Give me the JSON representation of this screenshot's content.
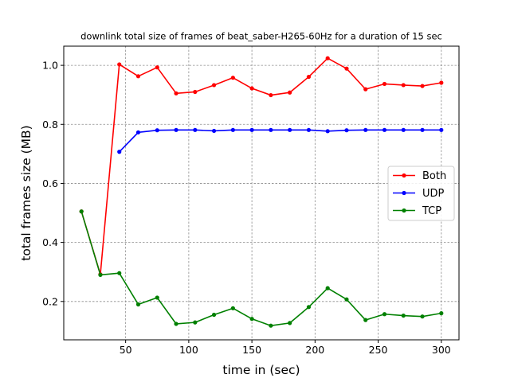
{
  "chart_data": {
    "type": "line",
    "title": "downlink total size of frames of beat_saber-H265-60Hz for a duration of 15 sec",
    "xlabel": "time in (sec)",
    "ylabel": "total frames size (MB)",
    "xlim": [
      1,
      314
    ],
    "ylim": [
      0.07,
      1.065
    ],
    "xticks": [
      50,
      100,
      150,
      200,
      250,
      300
    ],
    "yticks": [
      0.2,
      0.4,
      0.6,
      0.8,
      1.0
    ],
    "xtick_labels": [
      "50",
      "100",
      "150",
      "200",
      "250",
      "300"
    ],
    "ytick_labels": [
      "0.2",
      "0.4",
      "0.6",
      "0.8",
      "1.0"
    ],
    "grid": true,
    "legend_position": "center-right",
    "series": [
      {
        "name": "Both",
        "color": "#ff0000",
        "x": [
          15,
          30,
          45,
          60,
          75,
          90,
          105,
          120,
          135,
          150,
          165,
          180,
          195,
          210,
          225,
          240,
          255,
          270,
          285,
          300
        ],
        "values": [
          0.505,
          0.292,
          1.003,
          0.963,
          0.993,
          0.905,
          0.91,
          0.933,
          0.958,
          0.922,
          0.899,
          0.908,
          0.961,
          1.024,
          0.989,
          0.919,
          0.937,
          0.933,
          0.93,
          0.941
        ]
      },
      {
        "name": "UDP",
        "color": "#0000ff",
        "x": [
          45,
          60,
          75,
          90,
          105,
          120,
          135,
          150,
          165,
          180,
          195,
          210,
          225,
          240,
          255,
          270,
          285,
          300
        ],
        "values": [
          0.707,
          0.773,
          0.78,
          0.781,
          0.781,
          0.778,
          0.781,
          0.781,
          0.781,
          0.781,
          0.781,
          0.777,
          0.78,
          0.781,
          0.781,
          0.781,
          0.781,
          0.781
        ]
      },
      {
        "name": "TCP",
        "color": "#008000",
        "x": [
          15,
          30,
          45,
          60,
          75,
          90,
          105,
          120,
          135,
          150,
          165,
          180,
          195,
          210,
          225,
          240,
          255,
          270,
          285,
          300
        ],
        "values": [
          0.505,
          0.29,
          0.296,
          0.19,
          0.213,
          0.124,
          0.129,
          0.155,
          0.177,
          0.141,
          0.118,
          0.127,
          0.181,
          0.245,
          0.207,
          0.137,
          0.157,
          0.152,
          0.149,
          0.16
        ]
      }
    ]
  }
}
